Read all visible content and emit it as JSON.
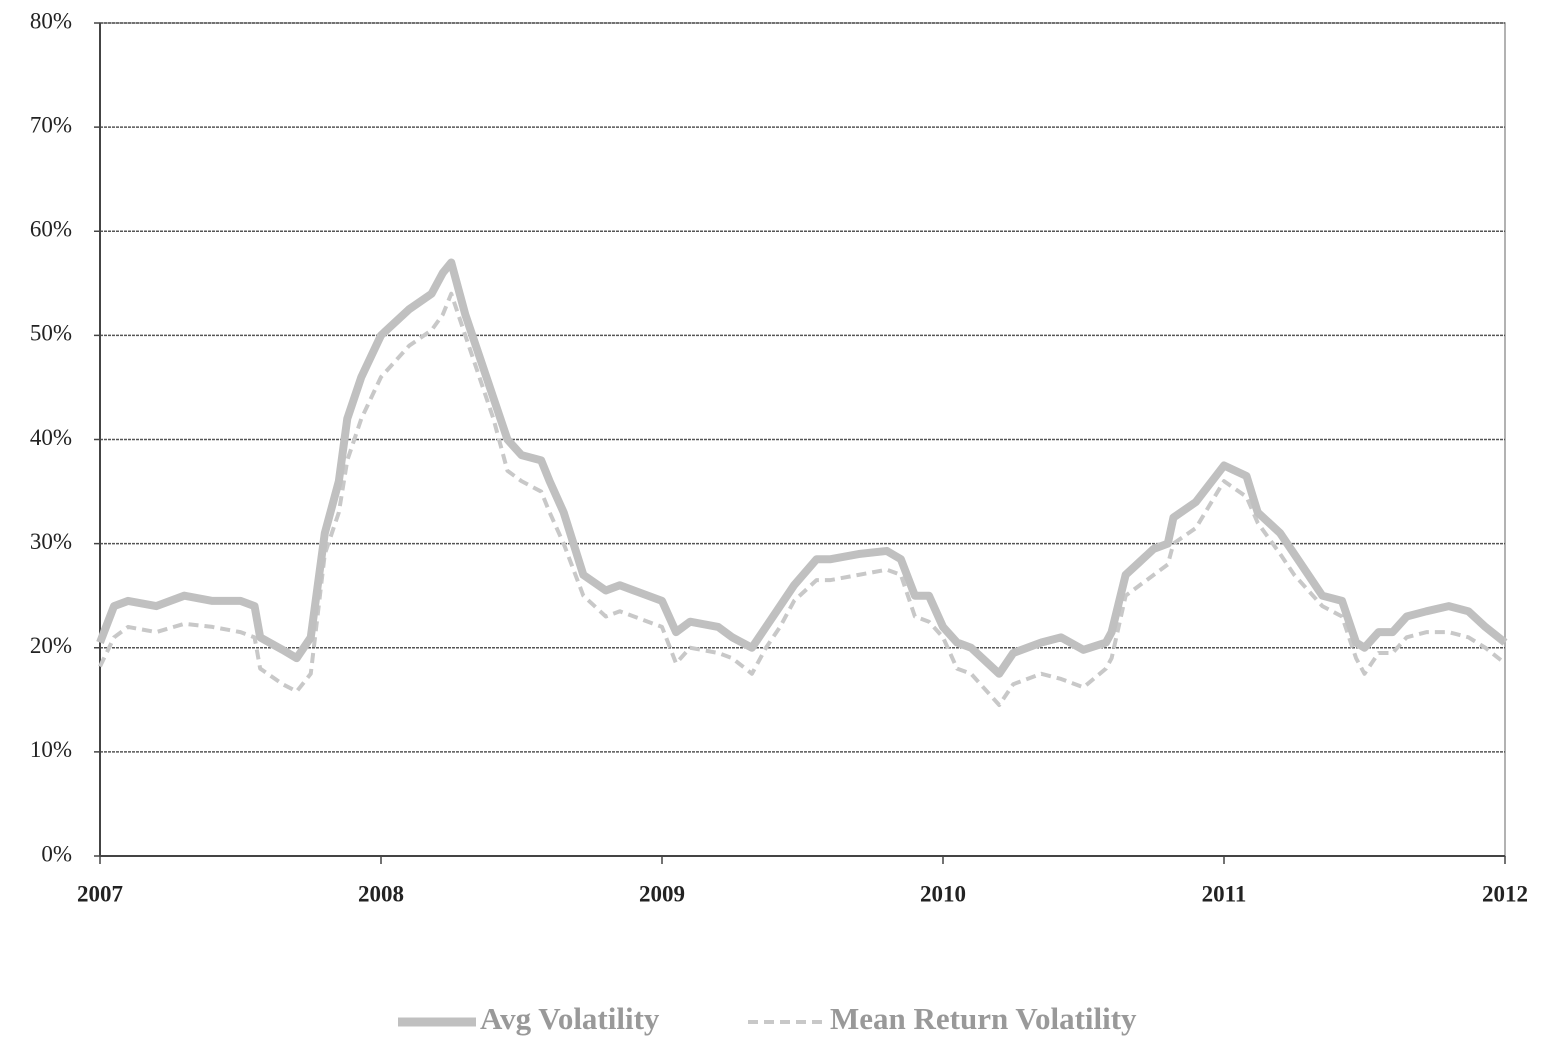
{
  "chart_data": {
    "type": "line",
    "xlim": [
      2007,
      2012
    ],
    "xticks": [
      2007,
      2008,
      2009,
      2010,
      2011,
      2012
    ],
    "ylim": [
      0,
      80
    ],
    "yticks": [
      {
        "value": 0,
        "label": "0%"
      },
      {
        "value": 10,
        "label": "10%"
      },
      {
        "value": 20,
        "label": "20%"
      },
      {
        "value": 30,
        "label": "30%"
      },
      {
        "value": 40,
        "label": "40%"
      },
      {
        "value": 50,
        "label": "50%"
      },
      {
        "value": 60,
        "label": "60%"
      },
      {
        "value": 70,
        "label": "70%"
      },
      {
        "value": 80,
        "label": "80%"
      }
    ],
    "grid": true,
    "legend": "bottom",
    "x": [
      2007.0,
      2007.05,
      2007.1,
      2007.2,
      2007.3,
      2007.4,
      2007.5,
      2007.55,
      2007.57,
      2007.65,
      2007.7,
      2007.75,
      2007.8,
      2007.85,
      2007.88,
      2007.93,
      2008.0,
      2008.1,
      2008.18,
      2008.22,
      2008.25,
      2008.3,
      2008.35,
      2008.4,
      2008.45,
      2008.5,
      2008.57,
      2008.6,
      2008.65,
      2008.72,
      2008.8,
      2008.85,
      2008.9,
      2009.0,
      2009.05,
      2009.1,
      2009.2,
      2009.25,
      2009.32,
      2009.37,
      2009.42,
      2009.47,
      2009.55,
      2009.6,
      2009.7,
      2009.8,
      2009.85,
      2009.9,
      2009.95,
      2010.0,
      2010.05,
      2010.1,
      2010.2,
      2010.25,
      2010.35,
      2010.42,
      2010.5,
      2010.58,
      2010.6,
      2010.65,
      2010.75,
      2010.8,
      2010.82,
      2010.9,
      2011.0,
      2011.08,
      2011.12,
      2011.2,
      2011.25,
      2011.35,
      2011.42,
      2011.47,
      2011.5,
      2011.55,
      2011.6,
      2011.65,
      2011.72,
      2011.8,
      2011.87,
      2011.93,
      2012.0
    ],
    "series": [
      {
        "name": "Avg Volatility",
        "color": "#c0c0c0",
        "dashed": false,
        "values": [
          20.5,
          24,
          24.5,
          24,
          25,
          24.5,
          24.5,
          24,
          21,
          19.8,
          19,
          21,
          31,
          36,
          42,
          46,
          50,
          52.5,
          54,
          56,
          57,
          52,
          48,
          44,
          40,
          38.5,
          38,
          36,
          33,
          27,
          25.5,
          26,
          25.5,
          24.5,
          21.5,
          22.5,
          22,
          21,
          20,
          22,
          24,
          26,
          28.5,
          28.5,
          29,
          29.3,
          28.5,
          25,
          25,
          22,
          20.5,
          20,
          17.5,
          19.5,
          20.5,
          21,
          19.8,
          20.5,
          21.5,
          27,
          29.5,
          30,
          32.5,
          34,
          37.5,
          36.5,
          33,
          31,
          29,
          25,
          24.5,
          20.5,
          20,
          21.5,
          21.5,
          23,
          23.5,
          24,
          23.5,
          22,
          20.5
        ]
      },
      {
        "name": "Mean Return Volatility",
        "color": "#c8c8c8",
        "dashed": true,
        "values": [
          18.2,
          21,
          22,
          21.5,
          22.3,
          22,
          21.5,
          21,
          18,
          16.5,
          15.8,
          17.5,
          29,
          33,
          38,
          42,
          46,
          49,
          50.5,
          52,
          54,
          50,
          46,
          42,
          37,
          36,
          35,
          33,
          30,
          25,
          23,
          23.5,
          23,
          22,
          18.5,
          20,
          19.5,
          19,
          17.5,
          20,
          22,
          24.5,
          26.5,
          26.5,
          27,
          27.5,
          27,
          23,
          22.5,
          21,
          18,
          17.5,
          14.5,
          16.5,
          17.5,
          17,
          16.2,
          18,
          19,
          25,
          27,
          28,
          30,
          31.5,
          36,
          34.5,
          32,
          29,
          27,
          24,
          23,
          19,
          17.5,
          19.5,
          19.5,
          21,
          21.5,
          21.5,
          21,
          20,
          18.5
        ]
      }
    ]
  }
}
